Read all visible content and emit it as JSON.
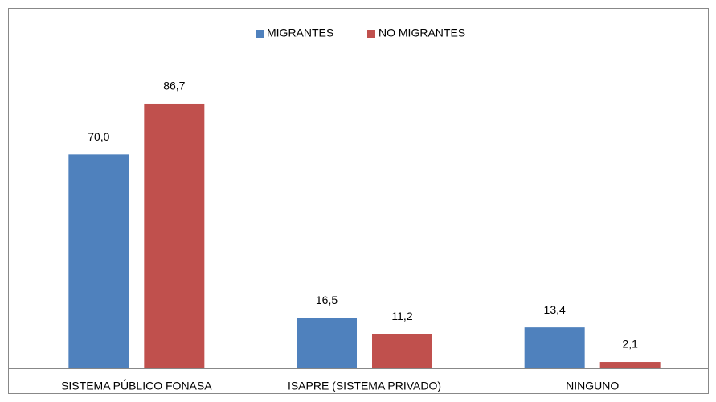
{
  "chart_data": {
    "type": "bar",
    "categories": [
      "SISTEMA PÚBLICO FONASA",
      "ISAPRE (SISTEMA PRIVADO)",
      "NINGUNO"
    ],
    "series": [
      {
        "name": "MIGRANTES",
        "color": "#4f81bd",
        "values": [
          70.0,
          16.5,
          13.4
        ],
        "value_labels": [
          "70,0",
          "16,5",
          "13,4"
        ]
      },
      {
        "name": "NO MIGRANTES",
        "color": "#c0504d",
        "values": [
          86.7,
          11.2,
          2.1
        ],
        "value_labels": [
          "86,7",
          "11,2",
          "2,1"
        ]
      }
    ],
    "ylim": [
      0,
      100
    ],
    "legend": "top"
  }
}
